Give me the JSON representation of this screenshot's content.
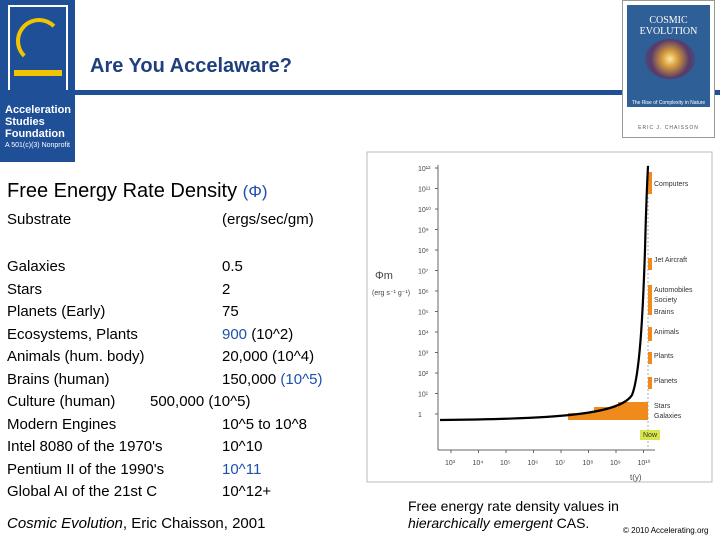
{
  "title": "Are You Accelaware?",
  "logo": {
    "line1": "Acceleration",
    "line2": "Studies",
    "line3": "Foundation",
    "sub": "A 501(c)(3) Nonprofit"
  },
  "book": {
    "title1": "COSMIC",
    "title2": "EVOLUTION",
    "subtitle": "The Rise of Complexity in Nature",
    "author": "ERIC J. CHAISSON"
  },
  "heading": {
    "text": "Free Energy Rate Density ",
    "symbol": "(Φ)"
  },
  "table": {
    "header": {
      "substrate": "Substrate",
      "unit": "(ergs/sec/gm)"
    },
    "rows": [
      {
        "name": "Galaxies",
        "value": "0.5"
      },
      {
        "name": "Stars",
        "value": "2"
      },
      {
        "name": "Planets (Early)",
        "value": "75"
      },
      {
        "name": "Ecosystems, Plants",
        "value": "900",
        "exp": " (10^2)"
      },
      {
        "name": "Animals (hum. body)",
        "value": "20,000 (10^4)"
      },
      {
        "name": "Brains (human)",
        "value": "150,000 ",
        "exp": "(10^5)"
      },
      {
        "name": "Culture (human)",
        "value": "500,000 (10^5)"
      },
      {
        "name": "Modern Engines",
        "value": "10^5 to 10^8"
      },
      {
        "name": "Intel 8080 of the 1970's",
        "value": "10^10"
      },
      {
        "name": "Pentium II of the 1990's",
        "value": "10^11"
      },
      {
        "name": "Global AI of the 21st C",
        "value": "10^12+"
      }
    ]
  },
  "citation": {
    "italic": "Cosmic Evolution",
    "rest": ", Eric Chaisson, 2001"
  },
  "caption": {
    "line1": "Free energy rate density values in",
    "italic": "hierarchically emergent",
    "tail": " CAS."
  },
  "copyright": "© 2010 Accelerating.org",
  "graph": {
    "y_label": "Φm",
    "y_unit": "(erg s⁻¹ g⁻¹)",
    "x_label": "t(y)",
    "y_ticks": [
      "10¹²",
      "10¹¹",
      "10¹⁰",
      "10⁹",
      "10⁸",
      "10⁷",
      "10⁶",
      "10⁵",
      "10⁴",
      "10³",
      "10²",
      "10¹",
      "1"
    ],
    "x_ticks": [
      "10³",
      "10⁴",
      "10⁵",
      "10⁶",
      "10⁷",
      "10⁸",
      "10⁹",
      "10¹⁰"
    ],
    "labels": [
      "Computers",
      "Jet Aircraft",
      "Automobiles",
      "Society",
      "Brains",
      "Animals",
      "Plants",
      "Planets",
      "Stars",
      "Galaxies",
      "Now"
    ]
  }
}
